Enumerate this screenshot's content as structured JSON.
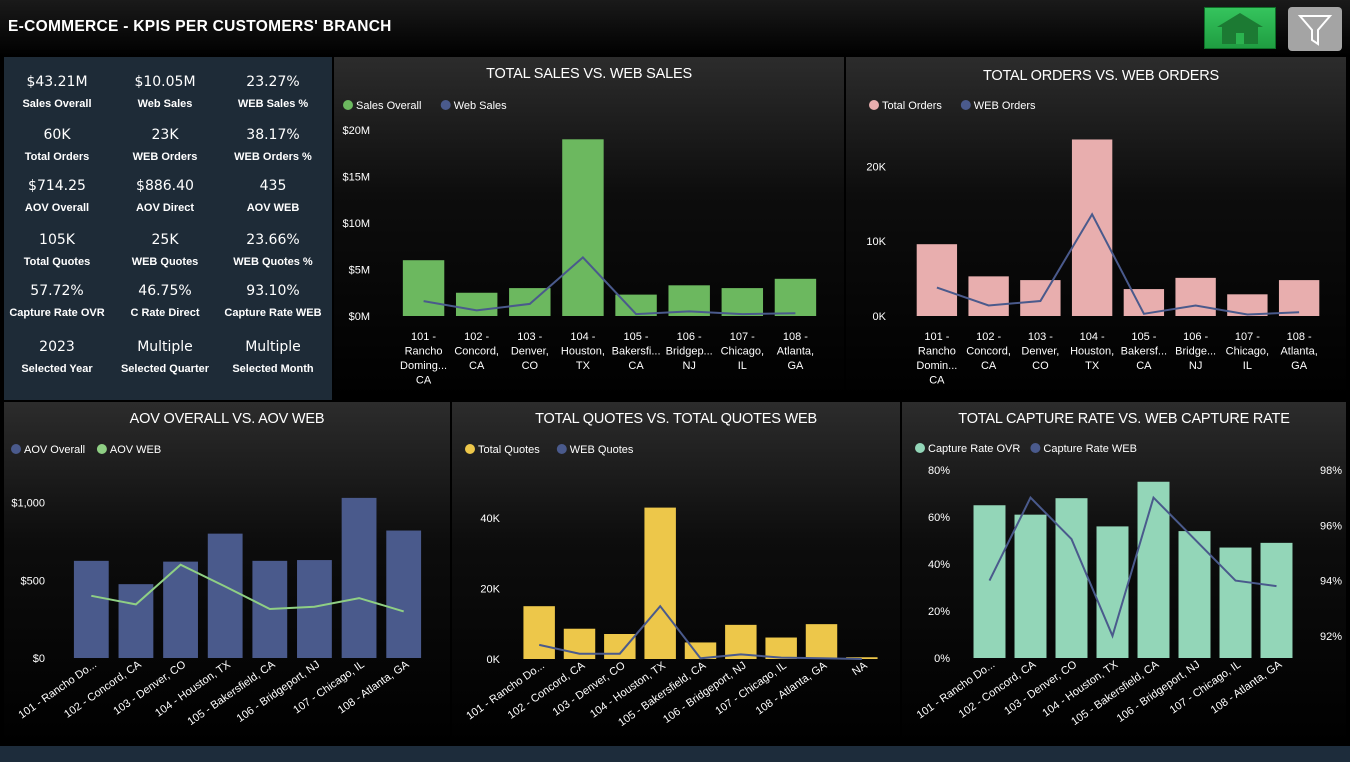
{
  "header": {
    "title": "E-COMMERCE - KPIS PER CUSTOMERS' BRANCH"
  },
  "buttons": {
    "home_icon": "home-icon",
    "filter_icon": "filter-icon",
    "home_color": "#2bb34f",
    "filter_color": "#a4a4a4"
  },
  "kpis": [
    {
      "value": "$43.21M",
      "label": "Sales Overall"
    },
    {
      "value": "$10.05M",
      "label": "Web Sales"
    },
    {
      "value": "23.27%",
      "label": "WEB Sales %"
    },
    {
      "value": "60K",
      "label": "Total Orders"
    },
    {
      "value": "23K",
      "label": "WEB Orders"
    },
    {
      "value": "38.17%",
      "label": "WEB Orders %"
    },
    {
      "value": "$714.25",
      "label": "AOV Overall"
    },
    {
      "value": "$886.40",
      "label": "AOV Direct"
    },
    {
      "value": "435",
      "label": "AOV WEB"
    },
    {
      "value": "105K",
      "label": "Total Quotes"
    },
    {
      "value": "25K",
      "label": "WEB Quotes"
    },
    {
      "value": "23.66%",
      "label": "WEB Quotes %"
    },
    {
      "value": "57.72%",
      "label": "Capture Rate OVR"
    },
    {
      "value": "46.75%",
      "label": "C Rate Direct"
    },
    {
      "value": "93.10%",
      "label": "Capture Rate WEB"
    },
    {
      "value": "2023",
      "label": "Selected Year"
    },
    {
      "value": "Multiple",
      "label": "Selected Quarter"
    },
    {
      "value": "Multiple",
      "label": "Selected Month"
    }
  ],
  "chart_data": [
    {
      "id": "sales",
      "type": "bar",
      "title": "TOTAL SALES VS. WEB SALES",
      "categories": [
        "101 - Rancho Doming... CA",
        "102 - Concord, CA",
        "103 - Denver, CO",
        "104 - Houston, TX",
        "105 - Bakersfi... CA",
        "106 - Bridgep... NJ",
        "107 - Chicago, IL",
        "108 - Atlanta, GA"
      ],
      "category_lines": [
        [
          "101 -",
          "Rancho",
          "Doming...",
          "CA"
        ],
        [
          "102 -",
          "Concord,",
          "CA"
        ],
        [
          "103 -",
          "Denver,",
          "CO"
        ],
        [
          "104 -",
          "Houston,",
          "TX"
        ],
        [
          "105 -",
          "Bakersfi...",
          "CA"
        ],
        [
          "106 -",
          "Bridgep...",
          "NJ"
        ],
        [
          "107 -",
          "Chicago,",
          "IL"
        ],
        [
          "108 -",
          "Atlanta,",
          "GA"
        ]
      ],
      "series": [
        {
          "name": "Sales Overall",
          "kind": "bar",
          "color": "#6cb85f",
          "values": [
            6.0,
            2.5,
            3.0,
            19.0,
            2.3,
            3.3,
            3.0,
            4.0
          ]
        },
        {
          "name": "Web Sales",
          "kind": "line",
          "color": "#4a5a8c",
          "values": [
            1.6,
            0.6,
            1.3,
            6.3,
            0.2,
            0.5,
            0.2,
            0.3
          ]
        }
      ],
      "ylim": [
        0,
        20
      ],
      "yticks": [
        0,
        5,
        10,
        15,
        20
      ],
      "yticklabels": [
        "$0M",
        "$5M",
        "$10M",
        "$15M",
        "$20M"
      ],
      "legend": "top-left"
    },
    {
      "id": "orders",
      "type": "bar",
      "title": "TOTAL ORDERS VS. WEB ORDERS",
      "categories": [
        "101 - Rancho Domin... CA",
        "102 - Concord, CA",
        "103 - Denver, CO",
        "104 - Houston, TX",
        "105 - Bakersfi... CA",
        "106 - Bridge... NJ",
        "107 - Chicago, IL",
        "108 - Atlanta, GA"
      ],
      "category_lines": [
        [
          "101 -",
          "Rancho",
          "Domin...",
          "CA"
        ],
        [
          "102 -",
          "Concord,",
          "CA"
        ],
        [
          "103 -",
          "Denver,",
          "CO"
        ],
        [
          "104 -",
          "Houston,",
          "TX"
        ],
        [
          "105 -",
          "Bakersf...",
          "CA"
        ],
        [
          "106 -",
          "Bridge...",
          "NJ"
        ],
        [
          "107 -",
          "Chicago,",
          "IL"
        ],
        [
          "108 -",
          "Atlanta,",
          "GA"
        ]
      ],
      "series": [
        {
          "name": "Total Orders",
          "kind": "bar",
          "color": "#e8aeae",
          "values": [
            9600,
            5300,
            4800,
            23600,
            3600,
            5100,
            2900,
            4800
          ]
        },
        {
          "name": "WEB Orders",
          "kind": "line",
          "color": "#4a5a8c",
          "values": [
            3800,
            1400,
            2000,
            13600,
            300,
            1400,
            200,
            500
          ]
        }
      ],
      "ylim": [
        0,
        25000
      ],
      "yticks": [
        0,
        10000,
        20000
      ],
      "yticklabels": [
        "0K",
        "10K",
        "20K"
      ],
      "legend": "top-left"
    },
    {
      "id": "aov",
      "type": "bar",
      "title": "AOV OVERALL VS. AOV WEB",
      "categories": [
        "101 - Rancho Do...",
        "102 - Concord, CA",
        "103 - Denver, CO",
        "104 - Houston, TX",
        "105 - Bakersfield, CA",
        "106 - Bridgeport, NJ",
        "107 - Chicago, IL",
        "108 - Atlanta, GA"
      ],
      "series": [
        {
          "name": "AOV Overall",
          "kind": "bar",
          "color": "#4a5a8c",
          "values": [
            625,
            475,
            620,
            800,
            625,
            630,
            1030,
            820
          ]
        },
        {
          "name": "AOV WEB",
          "kind": "line",
          "color": "#8fcf84",
          "values": [
            400,
            345,
            600,
            460,
            315,
            330,
            385,
            300
          ]
        }
      ],
      "ylim": [
        0,
        1100
      ],
      "yticks": [
        0,
        500,
        1000
      ],
      "yticklabels": [
        "$0",
        "$500",
        "$1,000"
      ],
      "legend": "top-left"
    },
    {
      "id": "quotes",
      "type": "bar",
      "title": "TOTAL QUOTES VS. TOTAL QUOTES WEB",
      "categories": [
        "101 - Rancho Do...",
        "102 - Concord, CA",
        "103 - Denver, CO",
        "104 - Houston, TX",
        "105 - Bakersfield, CA",
        "106 - Bridgeport, NJ",
        "107 - Chicago, IL",
        "108 - Atlanta, GA",
        "NA"
      ],
      "series": [
        {
          "name": "Total Quotes",
          "kind": "bar",
          "color": "#edc74a",
          "values": [
            15000,
            8600,
            7100,
            43000,
            4700,
            9700,
            6100,
            9900,
            500
          ]
        },
        {
          "name": "WEB Quotes",
          "kind": "line",
          "color": "#4a5a8c",
          "values": [
            4000,
            1500,
            1500,
            15000,
            200,
            1300,
            400,
            200,
            0
          ]
        }
      ],
      "ylim": [
        0,
        48000
      ],
      "yticks": [
        0,
        20000,
        40000
      ],
      "yticklabels": [
        "0K",
        "20K",
        "40K"
      ],
      "legend": "top-left"
    },
    {
      "id": "capture",
      "type": "bar",
      "title": "TOTAL CAPTURE RATE VS. WEB CAPTURE RATE",
      "categories": [
        "101 - Rancho Do...",
        "102 - Concord, CA",
        "103 - Denver, CO",
        "104 - Houston, TX",
        "105 - Bakersfield, CA",
        "106 - Bridgeport, NJ",
        "107 - Chicago, IL",
        "108 - Atlanta, GA"
      ],
      "series": [
        {
          "name": "Capture Rate OVR",
          "kind": "bar",
          "color": "#93d6b8",
          "values": [
            65,
            61,
            68,
            56,
            75,
            54,
            47,
            49
          ]
        },
        {
          "name": "Capture Rate WEB",
          "kind": "line",
          "axis": "right",
          "color": "#4a5a8c",
          "values": [
            94.0,
            97.0,
            95.5,
            92.0,
            97.0,
            95.5,
            94.0,
            93.8
          ]
        }
      ],
      "ylim": [
        0,
        80
      ],
      "yticks": [
        0,
        20,
        40,
        60,
        80
      ],
      "yticklabels": [
        "0%",
        "20%",
        "40%",
        "60%",
        "80%"
      ],
      "y2lim": [
        91.2,
        98.0
      ],
      "y2ticks": [
        92,
        94,
        96,
        98
      ],
      "y2ticklabels": [
        "92%",
        "94%",
        "96%",
        "98%"
      ],
      "legend": "top-left"
    }
  ]
}
